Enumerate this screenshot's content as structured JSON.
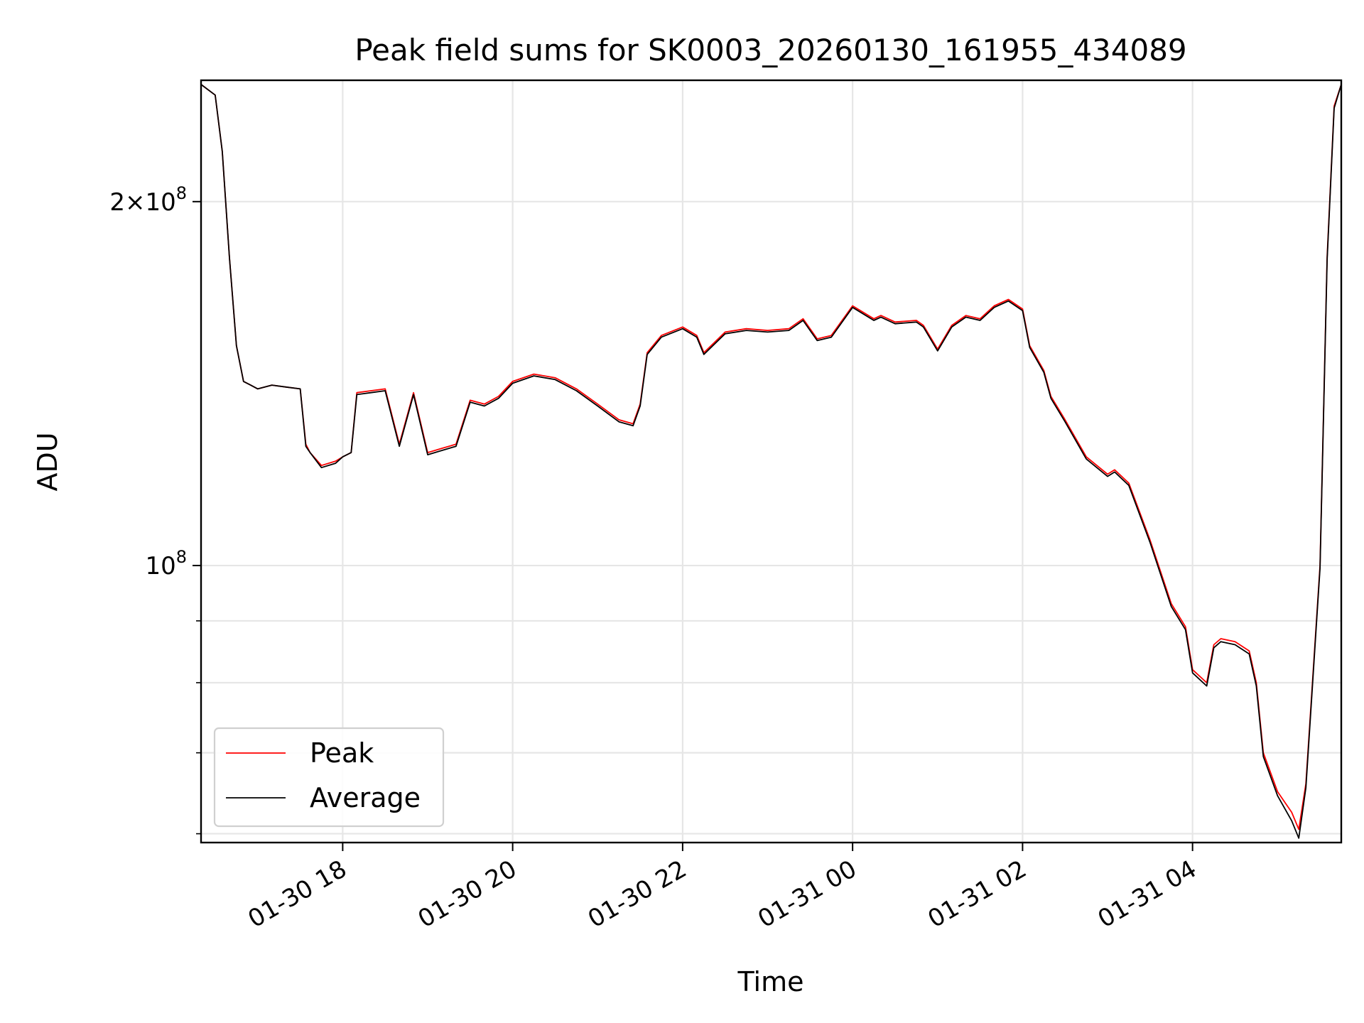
{
  "chart_data": {
    "type": "line",
    "title": "Peak field sums for SK0003_20260130_161955_434089",
    "xlabel": "Time",
    "ylabel": "ADU",
    "y_scale": "log",
    "ylim": [
      59000000,
      252000000
    ],
    "xlim": [
      "2026-01-30 16:20",
      "2026-01-31 05:45"
    ],
    "grid": true,
    "legend_position": "lower-left",
    "x_ticks": [
      {
        "value": "2026-01-30 18:00",
        "label": "01-30 18"
      },
      {
        "value": "2026-01-30 20:00",
        "label": "01-30 20"
      },
      {
        "value": "2026-01-30 22:00",
        "label": "01-30 22"
      },
      {
        "value": "2026-01-31 00:00",
        "label": "01-31 00"
      },
      {
        "value": "2026-01-31 02:00",
        "label": "01-31 02"
      },
      {
        "value": "2026-01-31 04:00",
        "label": "01-31 04"
      }
    ],
    "y_major_ticks": [
      {
        "value": 200000000,
        "mantissa": "2",
        "exponent": "8"
      },
      {
        "value": 100000000,
        "mantissa": "",
        "exponent": "8"
      }
    ],
    "y_minor_ticks": [
      60000000,
      70000000,
      80000000,
      90000000
    ],
    "x": [
      "2026-01-30 16:20",
      "2026-01-30 16:30",
      "2026-01-30 16:35",
      "2026-01-30 16:40",
      "2026-01-30 16:45",
      "2026-01-30 16:50",
      "2026-01-30 16:55",
      "2026-01-30 17:00",
      "2026-01-30 17:10",
      "2026-01-30 17:20",
      "2026-01-30 17:30",
      "2026-01-30 17:34",
      "2026-01-30 17:37",
      "2026-01-30 17:45",
      "2026-01-30 17:55",
      "2026-01-30 18:00",
      "2026-01-30 18:06",
      "2026-01-30 18:10",
      "2026-01-30 18:20",
      "2026-01-30 18:30",
      "2026-01-30 18:40",
      "2026-01-30 18:50",
      "2026-01-30 19:00",
      "2026-01-30 19:10",
      "2026-01-30 19:20",
      "2026-01-30 19:30",
      "2026-01-30 19:40",
      "2026-01-30 19:50",
      "2026-01-30 20:00",
      "2026-01-30 20:15",
      "2026-01-30 20:30",
      "2026-01-30 20:45",
      "2026-01-30 21:00",
      "2026-01-30 21:15",
      "2026-01-30 21:25",
      "2026-01-30 21:30",
      "2026-01-30 21:35",
      "2026-01-30 21:45",
      "2026-01-30 22:00",
      "2026-01-30 22:10",
      "2026-01-30 22:15",
      "2026-01-30 22:30",
      "2026-01-30 22:45",
      "2026-01-30 23:00",
      "2026-01-30 23:15",
      "2026-01-30 23:25",
      "2026-01-30 23:35",
      "2026-01-30 23:45",
      "2026-01-31 00:00",
      "2026-01-31 00:15",
      "2026-01-31 00:20",
      "2026-01-31 00:30",
      "2026-01-31 00:45",
      "2026-01-31 00:50",
      "2026-01-31 01:00",
      "2026-01-31 01:10",
      "2026-01-31 01:20",
      "2026-01-31 01:30",
      "2026-01-31 01:40",
      "2026-01-31 01:50",
      "2026-01-31 02:00",
      "2026-01-31 02:05",
      "2026-01-31 02:15",
      "2026-01-31 02:20",
      "2026-01-31 02:30",
      "2026-01-31 02:45",
      "2026-01-31 03:00",
      "2026-01-31 03:05",
      "2026-01-31 03:15",
      "2026-01-31 03:30",
      "2026-01-31 03:45",
      "2026-01-31 03:55",
      "2026-01-31 04:00",
      "2026-01-31 04:10",
      "2026-01-31 04:15",
      "2026-01-31 04:20",
      "2026-01-31 04:30",
      "2026-01-31 04:40",
      "2026-01-31 04:45",
      "2026-01-31 04:50",
      "2026-01-31 05:00",
      "2026-01-31 05:10",
      "2026-01-31 05:15",
      "2026-01-31 05:20",
      "2026-01-31 05:30",
      "2026-01-31 05:35",
      "2026-01-31 05:40",
      "2026-01-31 05:45"
    ],
    "series": [
      {
        "name": "Peak",
        "color": "#ff0000",
        "values": [
          250000000,
          245000000,
          220000000,
          180000000,
          152000000,
          142000000,
          141000000,
          140000000,
          141000000,
          140500000,
          140000000,
          126000000,
          124000000,
          121000000,
          122000000,
          123000000,
          124000000,
          139000000,
          139500000,
          140000000,
          126000000,
          139000000,
          124000000,
          125000000,
          126000000,
          137000000,
          136000000,
          138000000,
          142000000,
          144000000,
          143000000,
          140000000,
          136000000,
          132000000,
          131000000,
          136000000,
          150000000,
          155000000,
          157500000,
          155000000,
          150000000,
          156000000,
          157000000,
          156500000,
          157000000,
          160000000,
          154000000,
          155000000,
          164000000,
          160000000,
          161000000,
          159000000,
          159500000,
          158000000,
          151000000,
          158000000,
          161000000,
          160000000,
          164000000,
          166000000,
          163000000,
          152000000,
          145000000,
          138000000,
          132000000,
          123000000,
          119000000,
          120000000,
          117000000,
          105000000,
          93000000,
          89000000,
          82000000,
          80000000,
          86000000,
          87000000,
          86500000,
          85000000,
          80000000,
          70000000,
          65000000,
          62500000,
          60500000,
          66000000,
          100000000,
          180000000,
          240000000,
          250000000
        ]
      },
      {
        "name": "Average",
        "color": "#000000",
        "values": [
          250000000,
          245000000,
          220000000,
          180000000,
          152000000,
          142000000,
          141000000,
          140000000,
          141000000,
          140500000,
          140000000,
          125500000,
          124000000,
          120500000,
          121500000,
          123000000,
          124000000,
          138500000,
          139000000,
          139500000,
          125500000,
          138500000,
          123500000,
          124500000,
          125500000,
          136500000,
          135500000,
          137500000,
          141500000,
          143500000,
          142500000,
          139500000,
          135500000,
          131500000,
          130500000,
          135500000,
          149500000,
          154500000,
          157000000,
          154500000,
          149500000,
          155500000,
          156500000,
          156000000,
          156500000,
          159500000,
          153500000,
          154500000,
          163500000,
          159500000,
          160500000,
          158500000,
          159000000,
          157500000,
          150500000,
          157500000,
          160500000,
          159500000,
          163500000,
          165500000,
          162500000,
          151500000,
          144500000,
          137500000,
          131500000,
          122500000,
          118500000,
          119500000,
          116500000,
          104500000,
          92500000,
          88500000,
          81500000,
          79500000,
          85500000,
          86500000,
          86000000,
          84500000,
          79500000,
          69500000,
          64500000,
          61500000,
          59500000,
          65500000,
          99500000,
          179000000,
          239000000,
          250000000
        ]
      }
    ]
  }
}
